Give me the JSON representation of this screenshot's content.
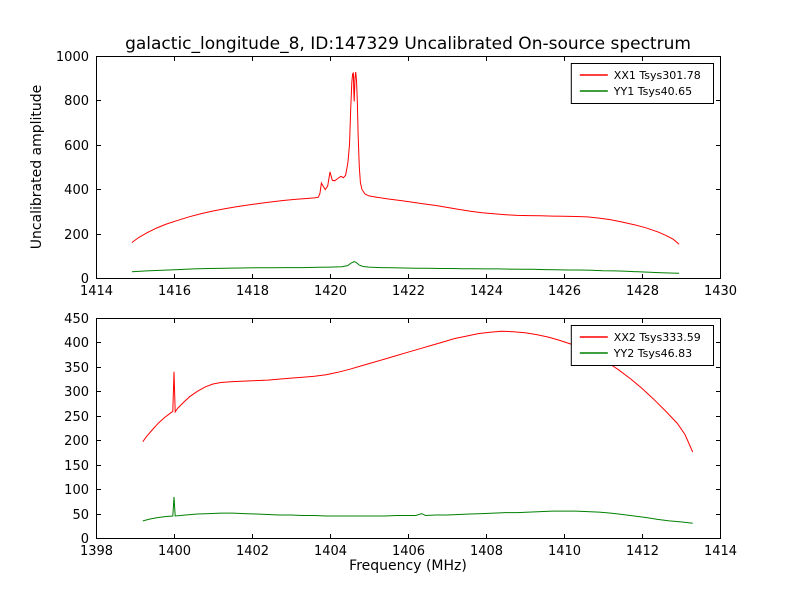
{
  "figure": {
    "title": "galactic_longitude_8, ID:147329 Uncalibrated On-source spectrum",
    "ylabel": "Uncalibrated amplitude",
    "xlabel": "Frequency (MHz)",
    "background": "#ffffff",
    "axes_color": "#000000"
  },
  "chart_data": [
    {
      "type": "line",
      "subplot": "top",
      "xlim": [
        1414,
        1430
      ],
      "ylim": [
        0,
        1000
      ],
      "xticks": [
        1414,
        1416,
        1418,
        1420,
        1422,
        1424,
        1426,
        1428,
        1430
      ],
      "yticks": [
        0,
        200,
        400,
        600,
        800,
        1000
      ],
      "grid": false,
      "legend_position": "upper right",
      "series": [
        {
          "name": "XX1 Tsys301.78",
          "color": "#ff0000",
          "points": [
            [
              1414.92,
              160
            ],
            [
              1415.1,
              183
            ],
            [
              1415.3,
              203
            ],
            [
              1415.55,
              225
            ],
            [
              1415.8,
              243
            ],
            [
              1416.1,
              260
            ],
            [
              1416.4,
              276
            ],
            [
              1416.7,
              290
            ],
            [
              1417.0,
              302
            ],
            [
              1417.3,
              312
            ],
            [
              1417.6,
              321
            ],
            [
              1417.9,
              329
            ],
            [
              1418.2,
              336
            ],
            [
              1418.5,
              343
            ],
            [
              1418.8,
              349
            ],
            [
              1419.1,
              354
            ],
            [
              1419.4,
              358
            ],
            [
              1419.6,
              361
            ],
            [
              1419.7,
              364
            ],
            [
              1419.74,
              380
            ],
            [
              1419.78,
              428
            ],
            [
              1419.82,
              415
            ],
            [
              1419.88,
              398
            ],
            [
              1419.94,
              415
            ],
            [
              1420.0,
              478
            ],
            [
              1420.06,
              440
            ],
            [
              1420.12,
              438
            ],
            [
              1420.2,
              448
            ],
            [
              1420.28,
              458
            ],
            [
              1420.34,
              452
            ],
            [
              1420.4,
              462
            ],
            [
              1420.46,
              520
            ],
            [
              1420.5,
              600
            ],
            [
              1420.53,
              760
            ],
            [
              1420.56,
              880
            ],
            [
              1420.58,
              918
            ],
            [
              1420.6,
              925
            ],
            [
              1420.61,
              840
            ],
            [
              1420.62,
              795
            ],
            [
              1420.64,
              900
            ],
            [
              1420.66,
              928
            ],
            [
              1420.68,
              890
            ],
            [
              1420.7,
              800
            ],
            [
              1420.72,
              650
            ],
            [
              1420.75,
              500
            ],
            [
              1420.78,
              430
            ],
            [
              1420.82,
              398
            ],
            [
              1420.9,
              378
            ],
            [
              1421.0,
              370
            ],
            [
              1421.2,
              364
            ],
            [
              1421.5,
              356
            ],
            [
              1421.8,
              349
            ],
            [
              1422.1,
              342
            ],
            [
              1422.4,
              334
            ],
            [
              1422.7,
              327
            ],
            [
              1423.0,
              318
            ],
            [
              1423.3,
              309
            ],
            [
              1423.6,
              301
            ],
            [
              1423.9,
              294
            ],
            [
              1424.2,
              289
            ],
            [
              1424.5,
              285
            ],
            [
              1424.8,
              282
            ],
            [
              1425.1,
              281
            ],
            [
              1425.4,
              280
            ],
            [
              1425.7,
              279
            ],
            [
              1426.0,
              278
            ],
            [
              1426.3,
              277
            ],
            [
              1426.6,
              275
            ],
            [
              1426.9,
              270
            ],
            [
              1427.2,
              262
            ],
            [
              1427.5,
              252
            ],
            [
              1427.8,
              240
            ],
            [
              1428.1,
              226
            ],
            [
              1428.4,
              208
            ],
            [
              1428.6,
              193
            ],
            [
              1428.8,
              175
            ],
            [
              1428.95,
              152
            ]
          ]
        },
        {
          "name": "YY1 Tsys40.65",
          "color": "#008000",
          "points": [
            [
              1414.92,
              28
            ],
            [
              1415.3,
              32
            ],
            [
              1415.7,
              35
            ],
            [
              1416.1,
              38
            ],
            [
              1416.5,
              41
            ],
            [
              1416.9,
              43
            ],
            [
              1417.3,
              44
            ],
            [
              1417.7,
              45
            ],
            [
              1418.1,
              46
            ],
            [
              1418.5,
              46
            ],
            [
              1418.9,
              47
            ],
            [
              1419.3,
              47
            ],
            [
              1419.7,
              48
            ],
            [
              1420.0,
              49
            ],
            [
              1420.3,
              51
            ],
            [
              1420.45,
              56
            ],
            [
              1420.55,
              68
            ],
            [
              1420.62,
              74
            ],
            [
              1420.68,
              69
            ],
            [
              1420.75,
              58
            ],
            [
              1420.85,
              52
            ],
            [
              1421.0,
              49
            ],
            [
              1421.3,
              47
            ],
            [
              1421.6,
              46
            ],
            [
              1421.9,
              45
            ],
            [
              1422.2,
              44
            ],
            [
              1422.5,
              44
            ],
            [
              1422.8,
              43
            ],
            [
              1423.1,
              43
            ],
            [
              1423.4,
              42
            ],
            [
              1423.7,
              42
            ],
            [
              1424.0,
              41
            ],
            [
              1424.3,
              41
            ],
            [
              1424.6,
              40
            ],
            [
              1424.9,
              39
            ],
            [
              1425.2,
              39
            ],
            [
              1425.5,
              38
            ],
            [
              1425.8,
              37
            ],
            [
              1426.1,
              36
            ],
            [
              1426.4,
              36
            ],
            [
              1426.7,
              35
            ],
            [
              1427.0,
              33
            ],
            [
              1427.3,
              32
            ],
            [
              1427.6,
              30
            ],
            [
              1427.9,
              28
            ],
            [
              1428.2,
              26
            ],
            [
              1428.5,
              24
            ],
            [
              1428.8,
              22
            ],
            [
              1428.95,
              21
            ]
          ]
        }
      ]
    },
    {
      "type": "line",
      "subplot": "bottom",
      "xlim": [
        1398,
        1414
      ],
      "ylim": [
        0,
        450
      ],
      "xticks": [
        1398,
        1400,
        1402,
        1404,
        1406,
        1408,
        1410,
        1412,
        1414
      ],
      "yticks": [
        0,
        50,
        100,
        150,
        200,
        250,
        300,
        350,
        400,
        450
      ],
      "grid": false,
      "legend_position": "upper right",
      "series": [
        {
          "name": "XX2 Tsys333.59",
          "color": "#ff0000",
          "points": [
            [
              1399.2,
              197
            ],
            [
              1399.3,
              208
            ],
            [
              1399.45,
              222
            ],
            [
              1399.6,
              235
            ],
            [
              1399.75,
              246
            ],
            [
              1399.9,
              255
            ],
            [
              1399.97,
              259
            ],
            [
              1400.0,
              340
            ],
            [
              1400.03,
              258
            ],
            [
              1400.1,
              266
            ],
            [
              1400.25,
              278
            ],
            [
              1400.4,
              289
            ],
            [
              1400.6,
              300
            ],
            [
              1400.8,
              309
            ],
            [
              1401.0,
              315
            ],
            [
              1401.2,
              318
            ],
            [
              1401.5,
              320
            ],
            [
              1401.8,
              321
            ],
            [
              1402.1,
              322
            ],
            [
              1402.4,
              323
            ],
            [
              1402.7,
              325
            ],
            [
              1403.0,
              327
            ],
            [
              1403.3,
              329
            ],
            [
              1403.6,
              331
            ],
            [
              1403.9,
              334
            ],
            [
              1404.2,
              339
            ],
            [
              1404.5,
              345
            ],
            [
              1404.8,
              352
            ],
            [
              1405.1,
              359
            ],
            [
              1405.4,
              366
            ],
            [
              1405.7,
              373
            ],
            [
              1406.0,
              380
            ],
            [
              1406.3,
              387
            ],
            [
              1406.6,
              394
            ],
            [
              1406.9,
              401
            ],
            [
              1407.2,
              408
            ],
            [
              1407.5,
              413
            ],
            [
              1407.8,
              418
            ],
            [
              1408.1,
              421
            ],
            [
              1408.4,
              423
            ],
            [
              1408.7,
              422
            ],
            [
              1409.0,
              420
            ],
            [
              1409.3,
              416
            ],
            [
              1409.6,
              411
            ],
            [
              1409.9,
              404
            ],
            [
              1410.2,
              396
            ],
            [
              1410.5,
              386
            ],
            [
              1410.8,
              374
            ],
            [
              1411.1,
              360
            ],
            [
              1411.4,
              344
            ],
            [
              1411.7,
              326
            ],
            [
              1412.0,
              306
            ],
            [
              1412.3,
              284
            ],
            [
              1412.6,
              260
            ],
            [
              1412.9,
              235
            ],
            [
              1413.1,
              212
            ],
            [
              1413.3,
              176
            ]
          ]
        },
        {
          "name": "YY2 Tsys46.83",
          "color": "#008000",
          "points": [
            [
              1399.2,
              35
            ],
            [
              1399.4,
              39
            ],
            [
              1399.6,
              42
            ],
            [
              1399.8,
              44
            ],
            [
              1399.97,
              45
            ],
            [
              1400.0,
              84
            ],
            [
              1400.03,
              45
            ],
            [
              1400.3,
              47
            ],
            [
              1400.6,
              49
            ],
            [
              1400.9,
              50
            ],
            [
              1401.2,
              51
            ],
            [
              1401.5,
              51
            ],
            [
              1401.8,
              50
            ],
            [
              1402.1,
              49
            ],
            [
              1402.4,
              48
            ],
            [
              1402.7,
              47
            ],
            [
              1403.0,
              47
            ],
            [
              1403.3,
              46
            ],
            [
              1403.6,
              46
            ],
            [
              1403.9,
              45
            ],
            [
              1404.2,
              45
            ],
            [
              1404.5,
              45
            ],
            [
              1404.8,
              45
            ],
            [
              1405.1,
              45
            ],
            [
              1405.4,
              45
            ],
            [
              1405.7,
              46
            ],
            [
              1406.0,
              46
            ],
            [
              1406.2,
              46
            ],
            [
              1406.35,
              50
            ],
            [
              1406.45,
              46
            ],
            [
              1406.7,
              47
            ],
            [
              1407.0,
              47
            ],
            [
              1407.3,
              48
            ],
            [
              1407.6,
              49
            ],
            [
              1407.9,
              50
            ],
            [
              1408.2,
              51
            ],
            [
              1408.5,
              52
            ],
            [
              1408.8,
              52
            ],
            [
              1409.1,
              53
            ],
            [
              1409.4,
              54
            ],
            [
              1409.7,
              55
            ],
            [
              1410.0,
              55
            ],
            [
              1410.3,
              55
            ],
            [
              1410.6,
              54
            ],
            [
              1410.9,
              53
            ],
            [
              1411.2,
              51
            ],
            [
              1411.5,
              48
            ],
            [
              1411.8,
              45
            ],
            [
              1412.1,
              42
            ],
            [
              1412.4,
              38
            ],
            [
              1412.7,
              35
            ],
            [
              1413.0,
              33
            ],
            [
              1413.3,
              30
            ]
          ]
        }
      ]
    }
  ]
}
